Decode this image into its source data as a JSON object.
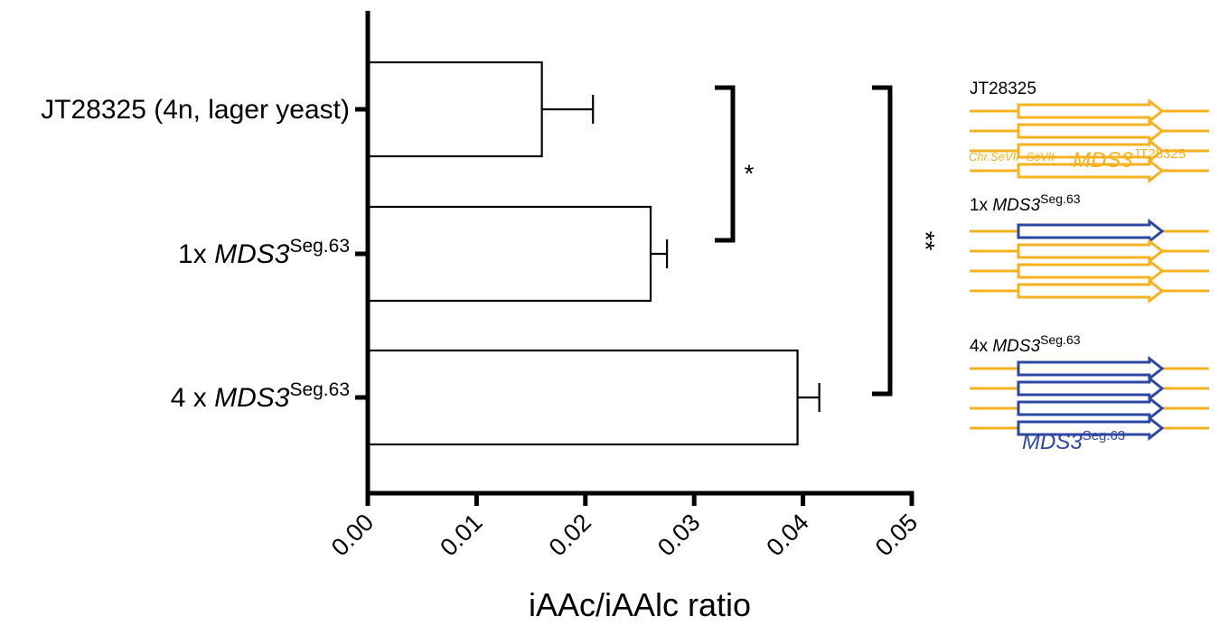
{
  "chart_data": {
    "type": "bar",
    "orientation": "horizontal",
    "categories": [
      {
        "prefix": "JT28325 (4n, lager yeast)",
        "gene": "",
        "sup": ""
      },
      {
        "prefix": "1x ",
        "gene": "MDS3",
        "sup": "Seg.63"
      },
      {
        "prefix": "4 x ",
        "gene": "MDS3",
        "sup": "Seg.63"
      }
    ],
    "values": [
      0.016,
      0.026,
      0.0395
    ],
    "errors": [
      0.0047,
      0.0015,
      0.002
    ],
    "xlabel": "iAAc/iAAlc ratio",
    "xlim": [
      0,
      0.05
    ],
    "xticks": [
      "0.00",
      "0.01",
      "0.02",
      "0.03",
      "0.04",
      "0.05"
    ],
    "significance": [
      {
        "from": 0,
        "to": 1,
        "label": "*"
      },
      {
        "from": 0,
        "to": 2,
        "label": "**"
      }
    ]
  },
  "insets": [
    {
      "title_prefix": "JT28325",
      "title_gene": "",
      "title_sup": "",
      "blue_count": 0,
      "chr_label": "Chr.SeVII -ScVII",
      "gene_label": "MDS3",
      "gene_sup": "JT28325"
    },
    {
      "title_prefix": "1x ",
      "title_gene": "MDS3",
      "title_sup": "Seg.63",
      "blue_count": 1,
      "chr_label": "",
      "gene_label": "",
      "gene_sup": ""
    },
    {
      "title_prefix": "4x ",
      "title_gene": "MDS3",
      "title_sup": "Seg.63",
      "blue_count": 4,
      "chr_label": "",
      "gene_label": "MDS3",
      "gene_sup": "Seg.63"
    }
  ],
  "colors": {
    "orange": "#f5b120",
    "blue": "#2e47a2",
    "axis": "#000000"
  }
}
